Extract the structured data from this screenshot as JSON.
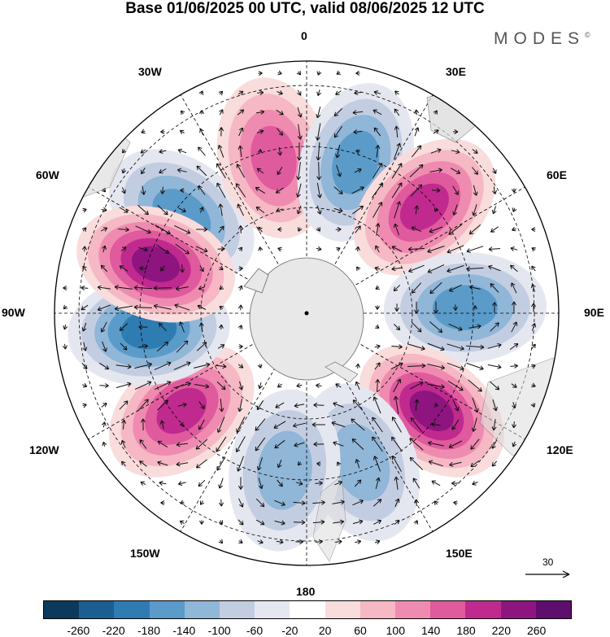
{
  "title": "Base 01/06/2025 00 UTC, valid 08/06/2025 12 UTC",
  "brand": "MODES",
  "brand_mark": "©",
  "longitude_labels": {
    "lon_0": "0",
    "lon_30e": "30E",
    "lon_60e": "60E",
    "lon_90e": "90E",
    "lon_120e": "120E",
    "lon_150e": "150E",
    "lon_180": "180",
    "lon_150w": "150W",
    "lon_120w": "120W",
    "lon_90w": "90W",
    "lon_60w": "60W",
    "lon_30w": "30W"
  },
  "vector_reference": "30",
  "colorbar": {
    "colors": [
      "#0b3a5c",
      "#1a5f8f",
      "#2f7cb3",
      "#5a9bc9",
      "#90b6d8",
      "#c3cde2",
      "#e5e7f0",
      "#ffffff",
      "#f9dcdc",
      "#f5b8c4",
      "#ef8bb0",
      "#e05a9e",
      "#c02a8e",
      "#8e157f",
      "#5e0e6d"
    ],
    "tick_labels": [
      "-260",
      "-220",
      "-180",
      "-140",
      "-100",
      "-60",
      "-20",
      "20",
      "60",
      "100",
      "140",
      "180",
      "220",
      "260"
    ]
  },
  "map": {
    "projection": "south-polar-stereographic",
    "field": "geopotential height anomaly",
    "arrows": "wind vectors",
    "anomalies": [
      {
        "lon": -52,
        "sign": "negative",
        "level": -180
      },
      {
        "lon": -12,
        "sign": "positive",
        "level": 140
      },
      {
        "lon": 18,
        "sign": "negative",
        "level": -180
      },
      {
        "lon": 48,
        "sign": "positive",
        "level": 180
      },
      {
        "lon": 88,
        "sign": "negative",
        "level": -180
      },
      {
        "lon": 128,
        "sign": "positive",
        "level": 220
      },
      {
        "lon": 160,
        "sign": "negative",
        "level": -140
      },
      {
        "lon": -172,
        "sign": "negative",
        "level": -140
      },
      {
        "lon": -128,
        "sign": "positive",
        "level": 180
      },
      {
        "lon": -96,
        "sign": "negative",
        "level": -220
      },
      {
        "lon": -72,
        "sign": "positive",
        "level": 220
      }
    ]
  }
}
